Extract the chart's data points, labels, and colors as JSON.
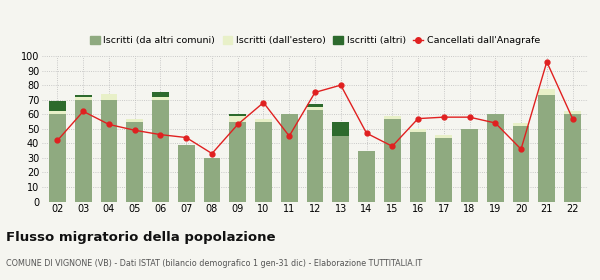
{
  "years": [
    "02",
    "03",
    "04",
    "05",
    "06",
    "07",
    "08",
    "09",
    "10",
    "11",
    "12",
    "13",
    "14",
    "15",
    "16",
    "17",
    "18",
    "19",
    "20",
    "21",
    "22"
  ],
  "iscritti_altri_comuni": [
    60,
    70,
    70,
    55,
    70,
    39,
    30,
    55,
    55,
    60,
    63,
    45,
    35,
    57,
    48,
    44,
    50,
    60,
    52,
    73,
    60
  ],
  "iscritti_estero": [
    2,
    2,
    4,
    2,
    2,
    0,
    0,
    4,
    2,
    0,
    2,
    0,
    0,
    2,
    2,
    2,
    0,
    0,
    2,
    4,
    2
  ],
  "iscritti_altri": [
    7,
    1,
    0,
    0,
    3,
    0,
    0,
    1,
    0,
    0,
    2,
    10,
    0,
    0,
    0,
    0,
    0,
    0,
    0,
    0,
    0
  ],
  "cancellati": [
    42,
    62,
    53,
    49,
    46,
    44,
    33,
    53,
    68,
    45,
    75,
    80,
    47,
    38,
    57,
    58,
    58,
    54,
    36,
    96,
    57
  ],
  "color_altri_comuni": "#8faa80",
  "color_estero": "#e8f0c8",
  "color_altri": "#2d6a2d",
  "color_cancellati": "#e02020",
  "background_color": "#f5f5f0",
  "title": "Flusso migratorio della popolazione",
  "subtitle": "COMUNE DI VIGNONE (VB) - Dati ISTAT (bilancio demografico 1 gen-31 dic) - Elaborazione TUTTITALIA.IT",
  "legend_labels": [
    "Iscritti (da altri comuni)",
    "Iscritti (dall'estero)",
    "Iscritti (altri)",
    "Cancellati dall'Anagrafe"
  ],
  "ylim": [
    0,
    100
  ],
  "yticks": [
    0,
    10,
    20,
    30,
    40,
    50,
    60,
    70,
    80,
    90,
    100
  ]
}
